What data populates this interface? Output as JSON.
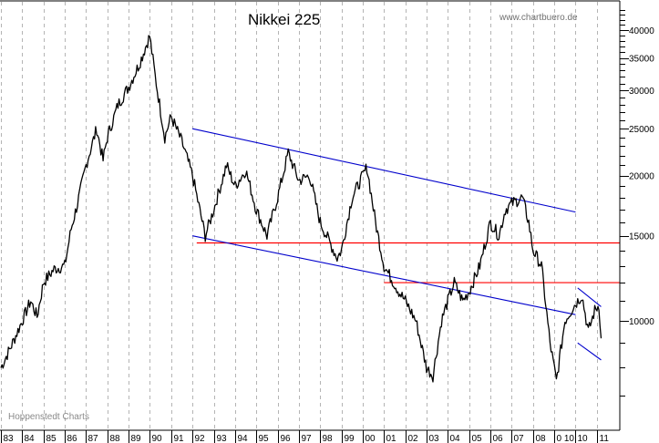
{
  "chart_data": {
    "type": "line",
    "title": "Nikkei 225",
    "watermark": "www.chartbuero.de",
    "source_label": "Hoppenstedt Charts",
    "xlabel": "",
    "ylabel": "",
    "y_scale": "log",
    "ylim": [
      6800,
      45000
    ],
    "grid": {
      "vertical": true,
      "style": "dashed",
      "color": "#b4b4b4"
    },
    "x_tick_labels": [
      "83",
      "84",
      "85",
      "86",
      "87",
      "88",
      "89",
      "90",
      "91",
      "92",
      "93",
      "94",
      "95",
      "96",
      "97",
      "98",
      "99",
      "00",
      "01",
      "02",
      "03",
      "04",
      "05",
      "06",
      "07",
      "08",
      "0 10",
      "10",
      "11"
    ],
    "y_tick_labels": [
      "40000",
      "35000",
      "30000",
      "25000",
      "20000",
      "15000",
      "10000"
    ],
    "y_tick_values": [
      40000,
      35000,
      30000,
      25000,
      20000,
      15000,
      10000
    ],
    "series": [
      {
        "name": "Nikkei 225",
        "color": "#000000",
        "x": [
          1983.0,
          1983.5,
          1984.0,
          1984.4,
          1984.7,
          1985.0,
          1985.5,
          1986.0,
          1986.3,
          1986.6,
          1987.0,
          1987.5,
          1987.8,
          1988.0,
          1988.5,
          1989.0,
          1989.5,
          1989.99,
          1990.3,
          1990.7,
          1991.0,
          1991.5,
          1992.0,
          1992.6,
          1993.0,
          1993.6,
          1994.0,
          1994.5,
          1995.0,
          1995.5,
          1996.0,
          1996.5,
          1997.0,
          1997.5,
          1998.0,
          1998.8,
          1999.0,
          1999.5,
          2000.2,
          2000.6,
          2001.0,
          2001.7,
          2002.0,
          2002.5,
          2003.0,
          2003.3,
          2003.7,
          2004.0,
          2004.3,
          2004.7,
          2005.0,
          2005.5,
          2006.0,
          2006.4,
          2006.7,
          2007.0,
          2007.5,
          2007.8,
          2008.0,
          2008.4,
          2008.8,
          2009.1,
          2009.5,
          2009.9,
          2010.3,
          2010.6,
          2010.9,
          2011.1,
          2011.2
        ],
        "values": [
          8000,
          8900,
          10000,
          11000,
          10200,
          12000,
          12800,
          13000,
          15500,
          17500,
          21000,
          25000,
          21500,
          24000,
          28000,
          30500,
          34000,
          38900,
          31000,
          24000,
          26500,
          23500,
          20000,
          15000,
          17000,
          21000,
          19000,
          20500,
          17000,
          15000,
          18000,
          22300,
          19500,
          20000,
          16000,
          13500,
          14000,
          18000,
          20800,
          16000,
          13000,
          11500,
          11000,
          10000,
          8000,
          7700,
          10000,
          11000,
          12000,
          11000,
          11500,
          13000,
          16000,
          15000,
          17000,
          17500,
          18000,
          16000,
          14000,
          13000,
          9000,
          7500,
          10000,
          10700,
          11300,
          9500,
          10500,
          10800,
          9200
        ]
      }
    ],
    "annotations": {
      "upper_channel": {
        "color": "#0000cc",
        "from": [
          1992.0,
          25000
        ],
        "to": [
          2010.0,
          16800
        ]
      },
      "lower_channel": {
        "color": "#0000cc",
        "from": [
          1992.0,
          15000
        ],
        "to": [
          2010.0,
          10300
        ]
      },
      "support_line_1": {
        "color": "#ff0000",
        "value": 14500,
        "from_year": 1992.2
      },
      "support_line_2": {
        "color": "#ff0000",
        "value": 12000,
        "from_year": 2001.0
      },
      "wedge_upper": {
        "color": "#0000cc",
        "from": [
          2010.1,
          11700
        ],
        "to": [
          2011.2,
          10700
        ]
      },
      "wedge_lower": {
        "color": "#0000cc",
        "from": [
          2010.1,
          9000
        ],
        "to": [
          2011.2,
          8300
        ]
      }
    }
  }
}
